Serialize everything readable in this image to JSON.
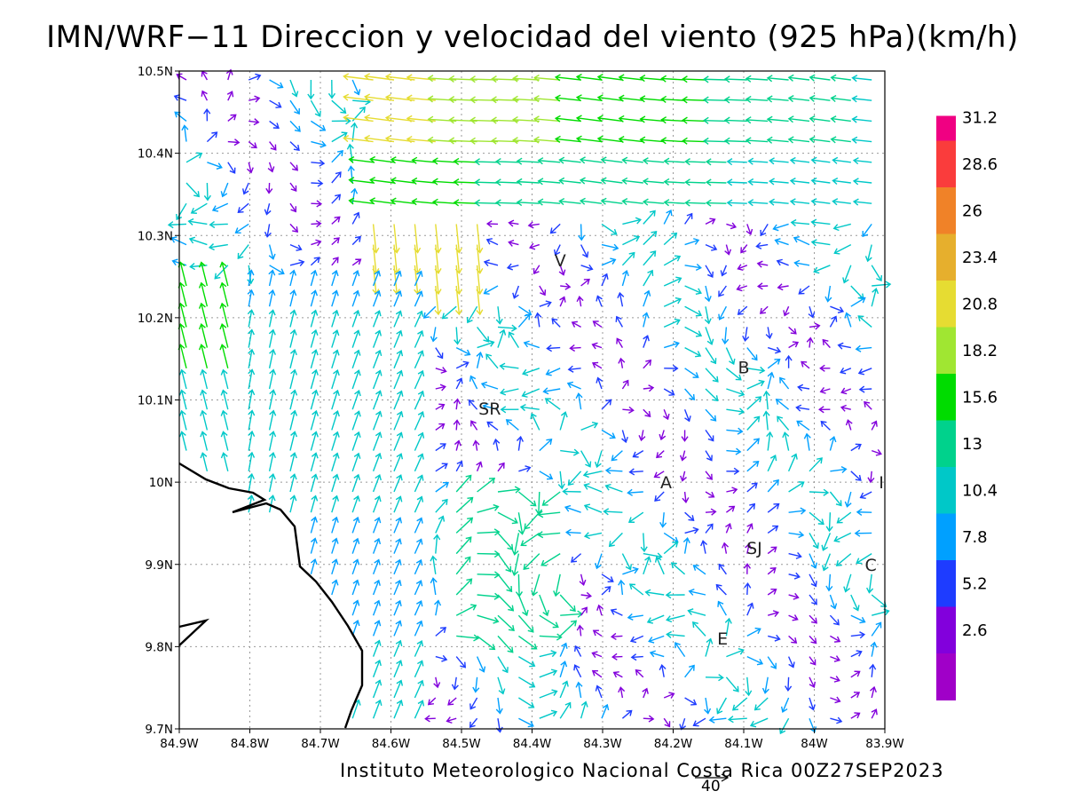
{
  "header": {
    "title": "IMN/WRF−11 Direccion y velocidad del viento (925 hPa)(km/h)"
  },
  "footer": {
    "credit": "Instituto Meteorologico Nacional Costa Rica 00Z27SEP2023",
    "reference_vector_label": "40"
  },
  "map": {
    "x_ticks": [
      "84.9W",
      "84.8W",
      "84.7W",
      "84.6W",
      "84.5W",
      "84.4W",
      "84.3W",
      "84.2W",
      "84.1W",
      "84W",
      "83.9W"
    ],
    "y_ticks": [
      "10.5N",
      "10.4N",
      "10.3N",
      "10.2N",
      "10.1N",
      "10N",
      "9.9N",
      "9.8N",
      "9.7N"
    ],
    "lon_range": [
      -84.9,
      -83.9
    ],
    "lat_range": [
      9.7,
      10.5
    ],
    "coastline_color": "#000000",
    "grid": true,
    "places": [
      {
        "label": "V",
        "lon": -84.36,
        "lat": 10.27
      },
      {
        "label": "B",
        "lon": -84.1,
        "lat": 10.14
      },
      {
        "label": "SR",
        "lon": -84.46,
        "lat": 10.09
      },
      {
        "label": "A",
        "lon": -84.21,
        "lat": 10.0
      },
      {
        "label": "I",
        "lon": -83.905,
        "lat": 10.0
      },
      {
        "label": "SJ",
        "lon": -84.085,
        "lat": 9.92
      },
      {
        "label": "C",
        "lon": -83.92,
        "lat": 9.9
      },
      {
        "label": "E",
        "lon": -84.13,
        "lat": 9.81
      }
    ]
  },
  "colorbar": {
    "labels": [
      "31.2",
      "28.6",
      "26",
      "23.4",
      "20.8",
      "18.2",
      "15.6",
      "13",
      "10.4",
      "7.8",
      "5.2",
      "2.6"
    ],
    "colors": [
      "#a000c8",
      "#8200dc",
      "#1e3cff",
      "#00a0ff",
      "#00c8c8",
      "#00d28c",
      "#00dc00",
      "#a0e632",
      "#e6dc32",
      "#e6af2d",
      "#f08228",
      "#fa3c3c",
      "#f00082"
    ]
  },
  "chart_data": {
    "type": "vector-field",
    "title": "IMN/WRF−11 Direccion y velocidad del viento (925 hPa)(km/h)",
    "units": "km/h",
    "level": "925 hPa",
    "xlim": [
      -84.9,
      -83.9
    ],
    "ylim": [
      9.7,
      10.5
    ],
    "reference_vector": 40,
    "legend_breaks": [
      2.6,
      5.2,
      7.8,
      10.4,
      13,
      15.6,
      18.2,
      20.8,
      23.4,
      26,
      28.6,
      31.2
    ]
  }
}
